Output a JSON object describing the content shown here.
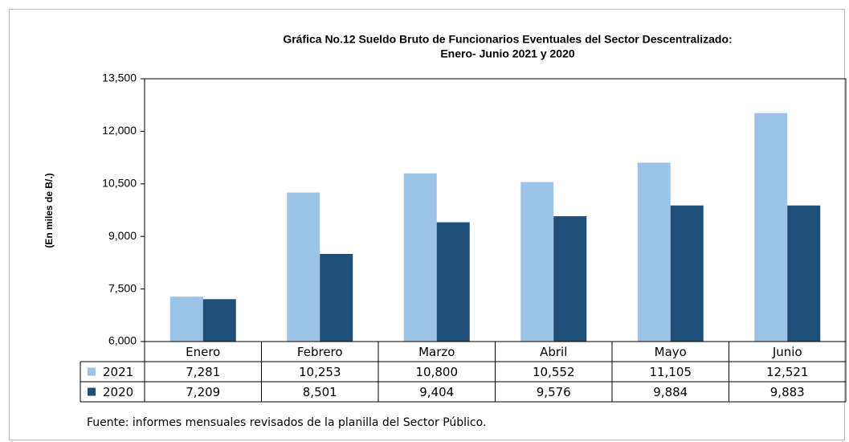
{
  "chart_data": {
    "type": "bar",
    "title": "Gráfica No.12 Sueldo Bruto de Funcionarios Eventuales del Sector Descentralizado:",
    "subtitle": "Enero- Junio 2021 y 2020",
    "y_label": "(En miles de B/.)",
    "source": "Fuente: informes mensuales revisados de la planilla del Sector Público.",
    "categories": [
      "Enero",
      "Febrero",
      "Marzo",
      "Abril",
      "Mayo",
      "Junio"
    ],
    "series": [
      {
        "name": "2021",
        "color": "#9dc3e6",
        "values": [
          7281,
          10253,
          10800,
          10552,
          11105,
          12521
        ],
        "value_labels": [
          "7,281",
          "10,253",
          "10,800",
          "10,552",
          "11,105",
          "12,521"
        ]
      },
      {
        "name": "2020",
        "color": "#1f4e79",
        "values": [
          7209,
          8501,
          9404,
          9576,
          9884,
          9883
        ],
        "value_labels": [
          "7,209",
          "8,501",
          "9,404",
          "9,576",
          "9,884",
          "9,883"
        ]
      }
    ],
    "ylim": [
      6000,
      13500
    ],
    "yticks": [
      {
        "value": 6000,
        "label": "6,000"
      },
      {
        "value": 7500,
        "label": "7,500"
      },
      {
        "value": 9000,
        "label": "9,000"
      },
      {
        "value": 10500,
        "label": "10,500"
      },
      {
        "value": 12000,
        "label": "12,000"
      },
      {
        "value": 13500,
        "label": "13,500"
      }
    ]
  }
}
